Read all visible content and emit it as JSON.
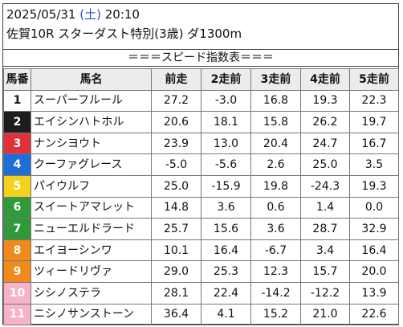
{
  "header": {
    "date": "2025/05/31",
    "weekday": "(土)",
    "time": "20:10",
    "race_info": "佐賀10R スターダスト特別(3歳) ダ1300m"
  },
  "title": "＝＝＝スピード指数表＝＝＝",
  "columns": [
    "馬番",
    "馬名",
    "前走",
    "2走前",
    "3走前",
    "4走前",
    "5走前"
  ],
  "rows": [
    {
      "num": "1",
      "color": "c1",
      "name": "スーパーフルール",
      "v": [
        "27.2",
        "-3.0",
        "16.8",
        "19.3",
        "22.3"
      ]
    },
    {
      "num": "2",
      "color": "c2",
      "name": "エイシンハトホル",
      "v": [
        "20.6",
        "18.1",
        "15.8",
        "26.2",
        "19.7"
      ]
    },
    {
      "num": "3",
      "color": "c3",
      "name": "ナンシヨウト",
      "v": [
        "23.9",
        "13.0",
        "20.4",
        "24.7",
        "16.7"
      ]
    },
    {
      "num": "4",
      "color": "c4",
      "name": "クーファグレース",
      "v": [
        "-5.0",
        "-5.6",
        "2.6",
        "25.0",
        "3.5"
      ]
    },
    {
      "num": "5",
      "color": "c5",
      "name": "パイウルフ",
      "v": [
        "25.0",
        "-15.9",
        "19.8",
        "-24.3",
        "19.3"
      ]
    },
    {
      "num": "6",
      "color": "c6",
      "name": "スイートアマレット",
      "v": [
        "14.8",
        "3.6",
        "0.6",
        "1.4",
        "0.0"
      ]
    },
    {
      "num": "7",
      "color": "c6",
      "name": "ニューエルドラード",
      "v": [
        "25.7",
        "15.6",
        "3.6",
        "28.7",
        "32.9"
      ]
    },
    {
      "num": "8",
      "color": "c7",
      "name": "エイヨーシンワ",
      "v": [
        "10.1",
        "16.4",
        "-6.7",
        "3.4",
        "16.4"
      ]
    },
    {
      "num": "9",
      "color": "c7",
      "name": "ツィードリヴァ",
      "v": [
        "29.0",
        "25.3",
        "12.3",
        "15.7",
        "20.0"
      ]
    },
    {
      "num": "10",
      "color": "c8",
      "name": "シシノステラ",
      "v": [
        "28.1",
        "22.4",
        "-14.2",
        "-12.2",
        "13.9"
      ]
    },
    {
      "num": "11",
      "color": "c8",
      "name": "ニシノサンストーン",
      "v": [
        "36.4",
        "4.1",
        "15.2",
        "21.0",
        "22.6"
      ]
    }
  ]
}
